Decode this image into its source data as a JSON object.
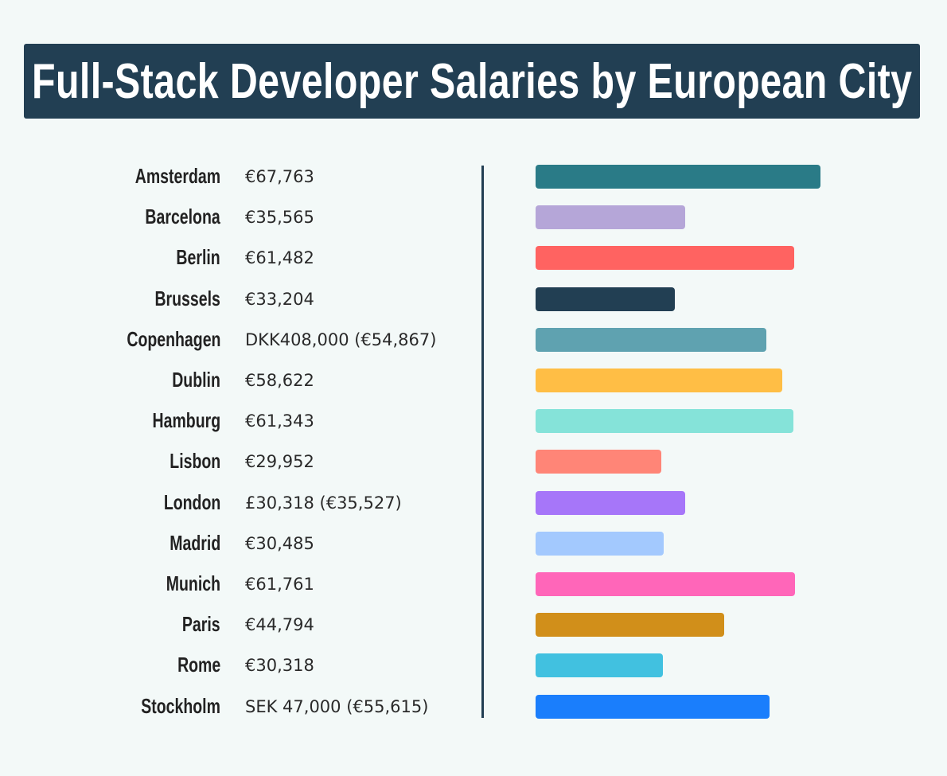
{
  "chart_data": {
    "type": "bar",
    "orientation": "horizontal",
    "title": "Full-Stack Developer Salaries by European City",
    "categories": [
      "Amsterdam",
      "Barcelona",
      "Berlin",
      "Brussels",
      "Copenhagen",
      "Dublin",
      "Hamburg",
      "Lisbon",
      "London",
      "Madrid",
      "Munich",
      "Paris",
      "Rome",
      "Stockholm"
    ],
    "labels": [
      "€67,763",
      "€35,565",
      "€61,482",
      "€33,204",
      "DKK408,000 (€54,867)",
      "€58,622",
      "€61,343",
      "€29,952",
      "£30,318 (€35,527)",
      "€30,485",
      "€61,761",
      "€44,794",
      "€30,318",
      "SEK 47,000 (€55,615)"
    ],
    "values": [
      67763,
      35565,
      61482,
      33204,
      54867,
      58622,
      61343,
      29952,
      35527,
      30485,
      61761,
      44794,
      30318,
      55615
    ],
    "unit": "EUR",
    "colors": [
      "#2a7b87",
      "#b5a6d8",
      "#ff6361",
      "#223f53",
      "#5fa2b0",
      "#ffbe45",
      "#85e3d9",
      "#ff8577",
      "#a676f9",
      "#a3c9fe",
      "#ff66b9",
      "#d18f1a",
      "#41c1e0",
      "#1a7efc"
    ],
    "grid": false,
    "legend": "none"
  }
}
